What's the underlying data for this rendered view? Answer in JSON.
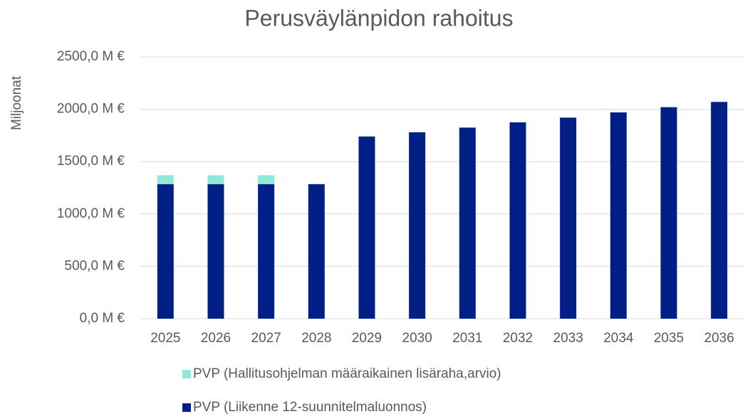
{
  "chart_data": {
    "type": "stacked_bar",
    "title": "Perusväylänpidon rahoitus",
    "y_label": "Miljoonat",
    "categories": [
      "2025",
      "2026",
      "2027",
      "2028",
      "2029",
      "2030",
      "2031",
      "2032",
      "2033",
      "2034",
      "2035",
      "2036"
    ],
    "series": [
      {
        "name": "PVP (Hallitusohjelman määraikainen lisäraha,arvio)",
        "color": "#8fe9d8",
        "values": [
          85,
          85,
          85,
          null,
          null,
          null,
          null,
          null,
          null,
          null,
          null,
          null
        ]
      },
      {
        "name": "PVP (Liikenne 12-suunnitelmaluonnos)",
        "color": "#002088",
        "values": [
          1285,
          1285,
          1285,
          1285,
          1740,
          1780,
          1825,
          1875,
          1920,
          1970,
          2020,
          2070
        ]
      }
    ],
    "ylim": [
      0,
      2500
    ],
    "yticks": [
      {
        "value": 0,
        "label": "0,0 M €"
      },
      {
        "value": 500,
        "label": "500,0 M €"
      },
      {
        "value": 1000,
        "label": "1000,0 M €"
      },
      {
        "value": 1500,
        "label": "1500,0 M €"
      },
      {
        "value": 2000,
        "label": "2000,0 M €"
      },
      {
        "value": 2500,
        "label": "2500,0 M €"
      }
    ],
    "grid": true,
    "legend": "bottom"
  }
}
